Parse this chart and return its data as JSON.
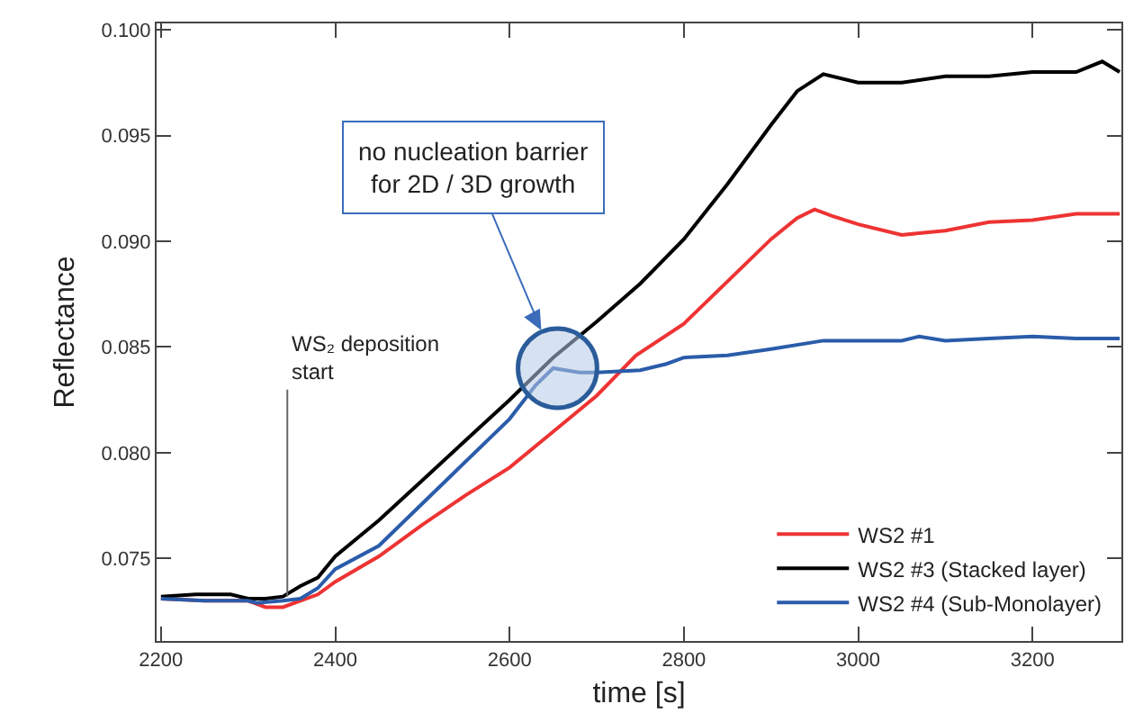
{
  "chart_data": {
    "type": "line",
    "xlabel": "time [s]",
    "ylabel": "Reflectance",
    "xlim": [
      2195,
      3302
    ],
    "ylim": [
      0.0711,
      0.1003
    ],
    "xticks": [
      2200,
      2400,
      2600,
      2800,
      3000,
      3200
    ],
    "yticks": [
      {
        "value": 0.075,
        "label": "0.075"
      },
      {
        "value": 0.08,
        "label": "0.080"
      },
      {
        "value": 0.085,
        "label": "0.085"
      },
      {
        "value": 0.09,
        "label": "0.090"
      },
      {
        "value": 0.095,
        "label": "0.095"
      },
      {
        "value": 0.1,
        "label": "0.100"
      }
    ],
    "legend": "bottom right",
    "marker": "none",
    "line_style": "solid",
    "series": [
      {
        "name": "WS2 #1",
        "color": "#ee3333",
        "x": [
          2200,
          2250,
          2300,
          2320,
          2340,
          2360,
          2380,
          2400,
          2450,
          2500,
          2550,
          2600,
          2650,
          2700,
          2745,
          2800,
          2850,
          2900,
          2930,
          2950,
          2970,
          3000,
          3050,
          3100,
          3150,
          3200,
          3250,
          3300
        ],
        "values": [
          0.0731,
          0.073,
          0.073,
          0.0727,
          0.0727,
          0.073,
          0.0733,
          0.0739,
          0.0751,
          0.0766,
          0.078,
          0.0793,
          0.081,
          0.0827,
          0.0846,
          0.0861,
          0.0881,
          0.0901,
          0.0911,
          0.0915,
          0.0912,
          0.0908,
          0.0903,
          0.0905,
          0.0909,
          0.091,
          0.0913,
          0.0913
        ]
      },
      {
        "name": "WS2 #3 (Stacked layer)",
        "color": "#000000",
        "x": [
          2200,
          2240,
          2280,
          2300,
          2320,
          2340,
          2360,
          2380,
          2400,
          2450,
          2500,
          2550,
          2600,
          2650,
          2700,
          2750,
          2800,
          2850,
          2900,
          2930,
          2960,
          3000,
          3050,
          3100,
          3150,
          3200,
          3250,
          3280,
          3300
        ],
        "values": [
          0.0732,
          0.0733,
          0.0733,
          0.0731,
          0.0731,
          0.0732,
          0.0737,
          0.0741,
          0.0751,
          0.0768,
          0.0787,
          0.0806,
          0.0825,
          0.0845,
          0.0862,
          0.088,
          0.0901,
          0.0927,
          0.0955,
          0.0971,
          0.0979,
          0.0975,
          0.0975,
          0.0978,
          0.0978,
          0.098,
          0.098,
          0.0985,
          0.098
        ]
      },
      {
        "name": "WS2 #4 (Sub-Monolayer)",
        "color": "#2a5caa",
        "x": [
          2200,
          2250,
          2300,
          2310,
          2340,
          2360,
          2380,
          2400,
          2450,
          2500,
          2550,
          2600,
          2630,
          2650,
          2680,
          2700,
          2750,
          2780,
          2800,
          2850,
          2900,
          2960,
          3000,
          3050,
          3070,
          3100,
          3150,
          3200,
          3250,
          3300
        ],
        "values": [
          0.0731,
          0.073,
          0.073,
          0.0729,
          0.073,
          0.0731,
          0.0736,
          0.0745,
          0.0756,
          0.0776,
          0.0796,
          0.0816,
          0.0832,
          0.084,
          0.0838,
          0.0838,
          0.0839,
          0.0842,
          0.0845,
          0.0846,
          0.0849,
          0.0853,
          0.0853,
          0.0853,
          0.0855,
          0.0853,
          0.0854,
          0.0855,
          0.0854,
          0.0854
        ]
      }
    ],
    "annotations": [
      {
        "text": "WS₂ deposition\nstart",
        "x": 2345,
        "y": 0.0732
      },
      {
        "text": "no nucleation barrier\nfor 2D / 3D growth",
        "x": 2655,
        "y": 0.084
      }
    ]
  }
}
